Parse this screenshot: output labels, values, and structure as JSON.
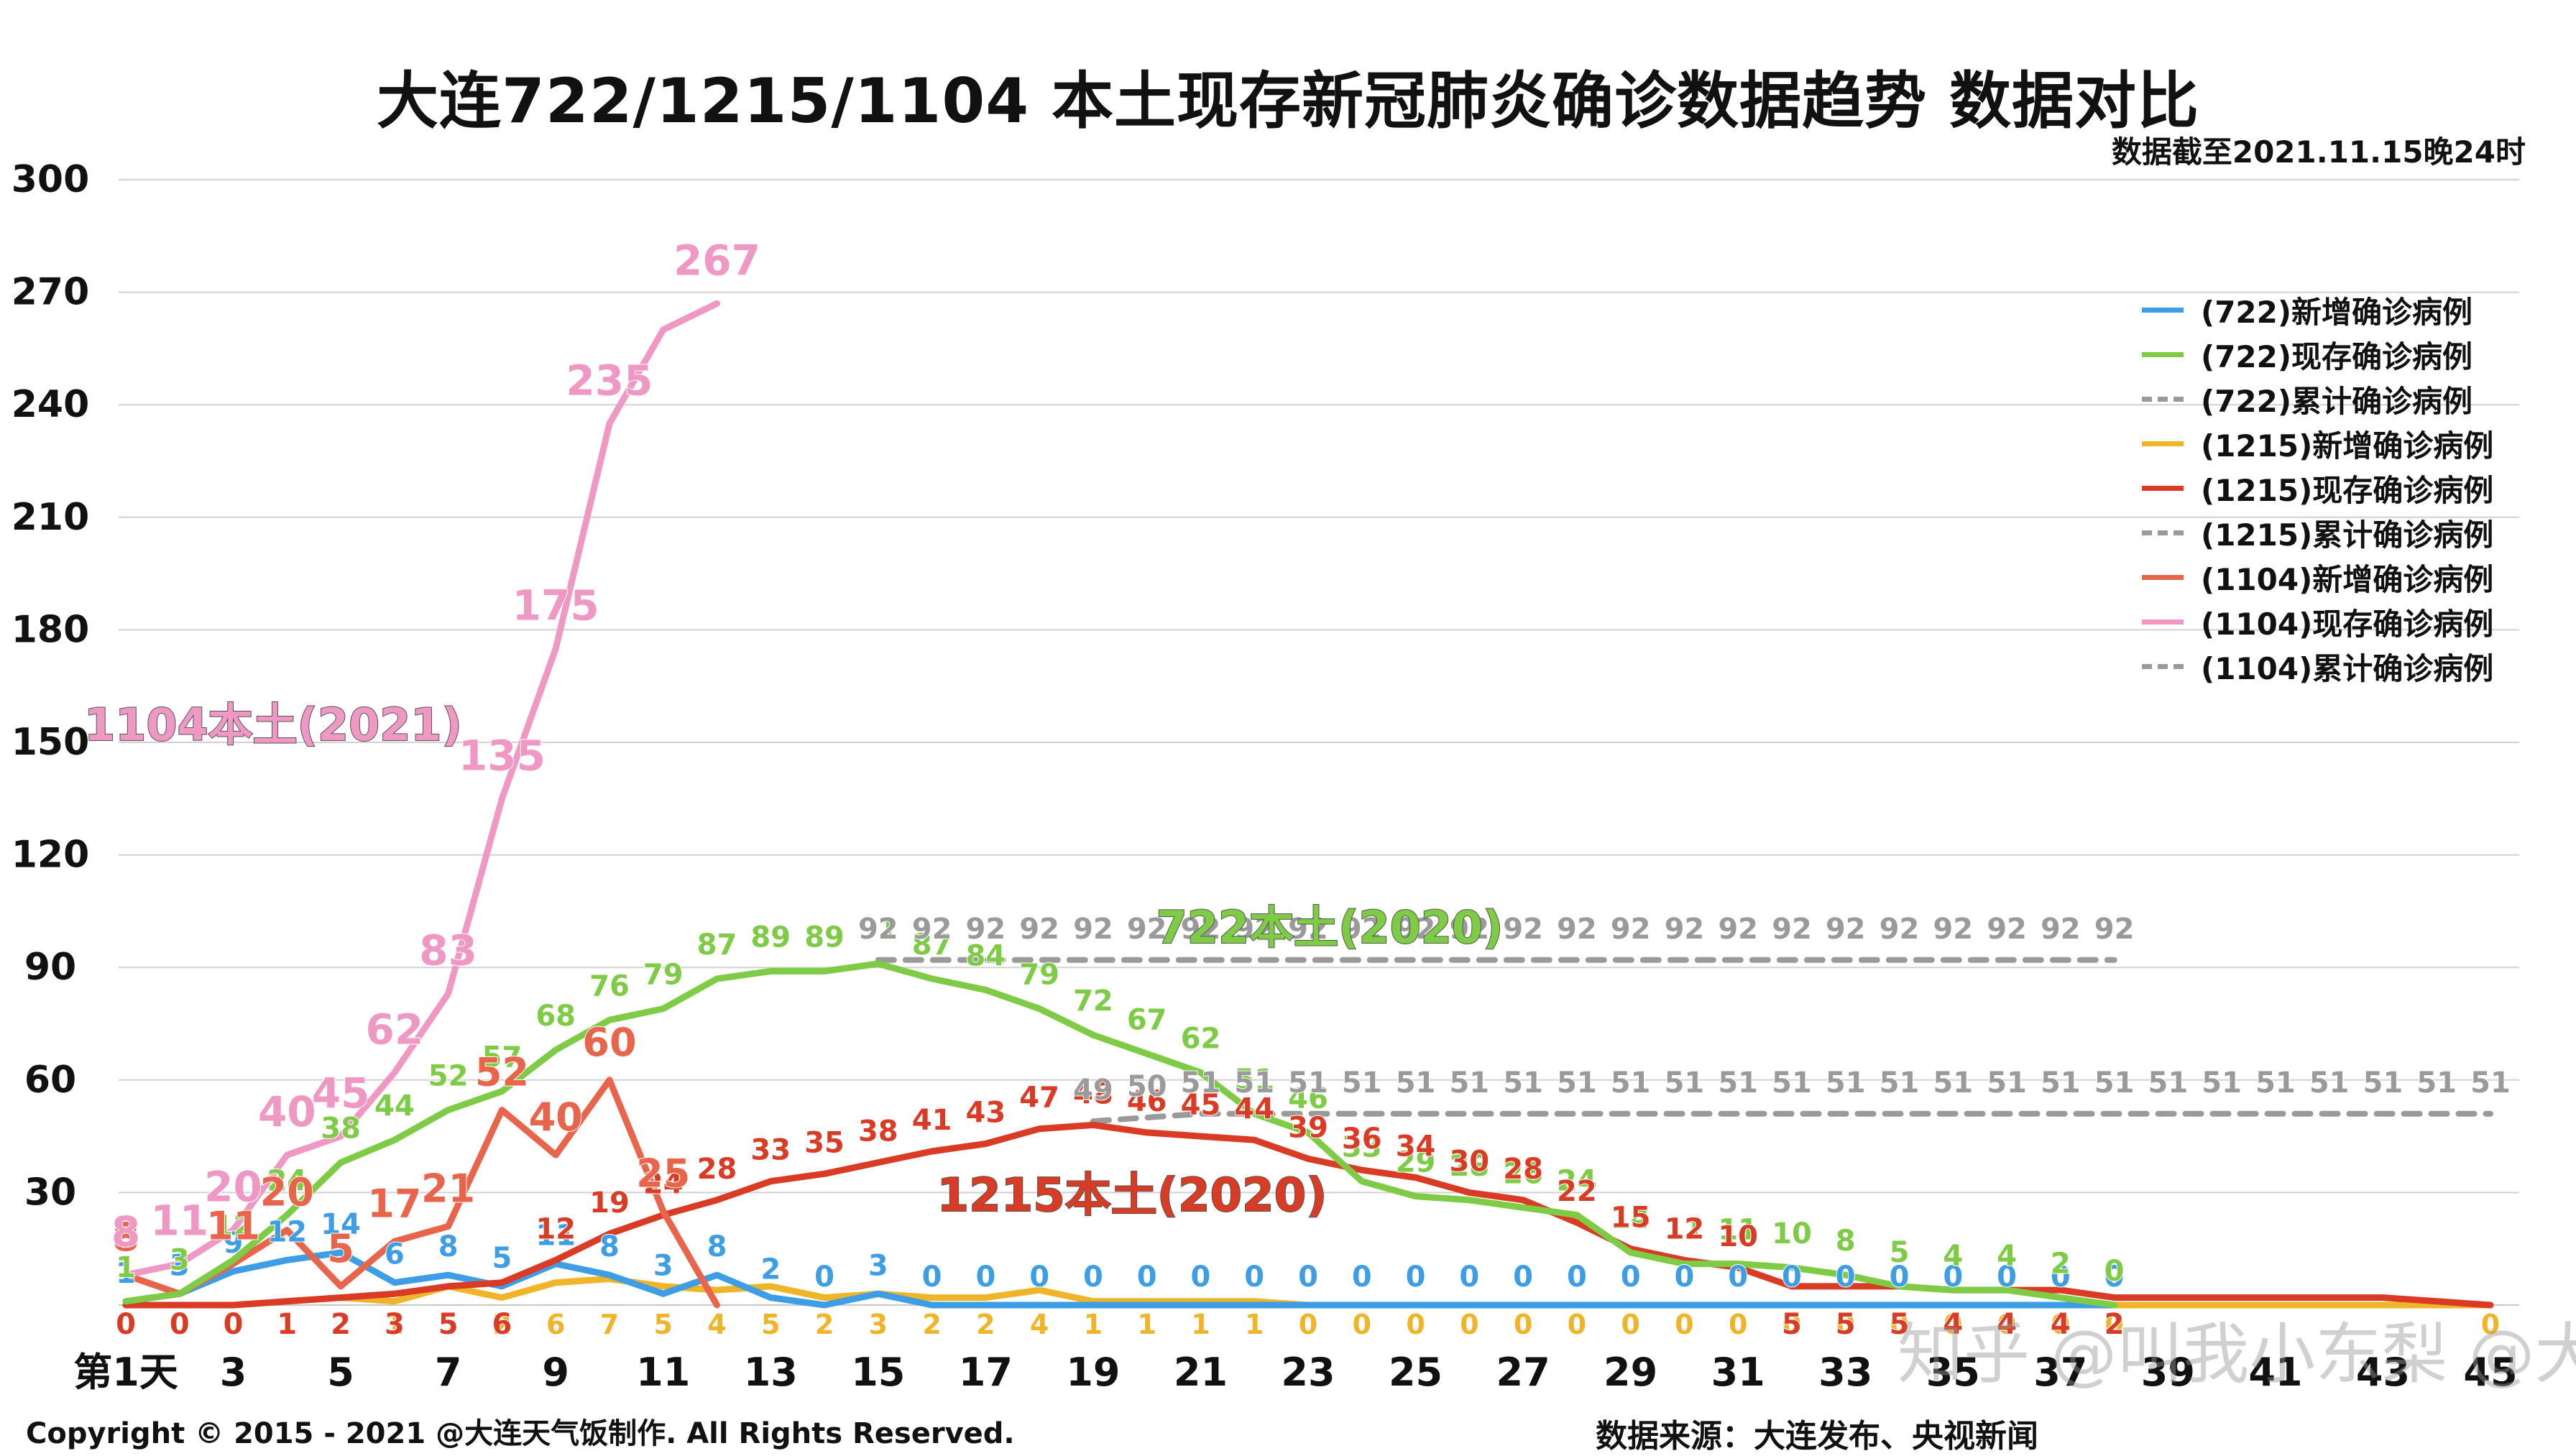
{
  "title": "大连722/1215/1104 本土现存新冠肺炎确诊数据趋势 数据对比",
  "data_cutoff": "数据截至2021.11.15晚24时",
  "copyright": "Copyright © 2015 - 2021 @大连天气饭制作. All Rights Reserved.",
  "source": "数据来源：大连发布、央视新闻",
  "watermark": "知乎 @叫我小东梨  @大连天气饭",
  "annotations": {
    "a1104": "1104本土(2021)",
    "a722": "722本土(2020)",
    "a1215": "1215本土(2020)"
  },
  "colors": {
    "c722_new": "#3d9ee6",
    "c722_current": "#7ecb45",
    "c1215_new": "#f0b429",
    "c1215_current": "#d93b24",
    "c1104_new": "#e8644a",
    "c1104_current": "#ef98c4",
    "cumulative": "#9a9a9a"
  },
  "chart_data": {
    "type": "line",
    "x_label_first": "第1天",
    "x_ticks": [
      "第1天",
      "3",
      "5",
      "7",
      "9",
      "11",
      "13",
      "15",
      "17",
      "19",
      "21",
      "23",
      "25",
      "27",
      "29",
      "31",
      "33",
      "35",
      "37",
      "39",
      "41",
      "43",
      "45"
    ],
    "x_range": [
      1,
      45
    ],
    "y_ticks": [
      "300",
      "270",
      "240",
      "210",
      "180",
      "150",
      "120",
      "90",
      "60",
      "30"
    ],
    "ylim": [
      0,
      300
    ],
    "grid": true,
    "legend_position": "right",
    "series": [
      {
        "name": "(722)新增确诊病例",
        "key": "c722_new",
        "style": "solid",
        "x": [
          1,
          2,
          3,
          4,
          5,
          6,
          7,
          8,
          9,
          10,
          11,
          12,
          13,
          14,
          15,
          16,
          17,
          18,
          19,
          20,
          21,
          22,
          23,
          24,
          25,
          26,
          27,
          28,
          29,
          30,
          31,
          32,
          33,
          34,
          35,
          36,
          37,
          38
        ],
        "values": [
          1,
          3,
          9,
          12,
          14,
          6,
          8,
          5,
          11,
          8,
          3,
          8,
          2,
          0,
          3,
          0,
          0,
          0,
          0,
          0,
          0,
          0,
          0,
          0,
          0,
          0,
          0,
          0,
          0,
          0,
          0,
          0,
          0,
          0,
          0,
          0,
          0,
          0
        ],
        "labels": [
          true,
          true,
          true,
          true,
          true,
          true,
          true,
          true,
          true,
          true,
          true,
          true,
          true,
          true,
          true,
          true,
          true,
          true,
          true,
          true,
          true,
          true,
          true,
          true,
          true,
          true,
          true,
          true,
          true,
          true,
          true,
          true,
          true,
          true,
          true,
          true,
          true,
          true
        ]
      },
      {
        "name": "(722)现存确诊病例",
        "key": "c722_current",
        "style": "solid",
        "x": [
          1,
          2,
          3,
          4,
          5,
          6,
          7,
          8,
          9,
          10,
          11,
          12,
          13,
          14,
          15,
          16,
          17,
          18,
          19,
          20,
          21,
          22,
          23,
          24,
          25,
          26,
          27,
          28,
          29,
          30,
          31,
          32,
          33,
          34,
          35,
          36,
          37,
          38
        ],
        "values": [
          1,
          3,
          12,
          24,
          38,
          44,
          52,
          57,
          68,
          76,
          79,
          87,
          89,
          89,
          91,
          87,
          84,
          79,
          72,
          67,
          62,
          51,
          46,
          33,
          29,
          28,
          26,
          24,
          14,
          11,
          11,
          10,
          8,
          5,
          4,
          4,
          2,
          0
        ],
        "labels": [
          true,
          true,
          true,
          true,
          true,
          true,
          true,
          true,
          true,
          true,
          true,
          true,
          true,
          true,
          true,
          true,
          true,
          true,
          true,
          true,
          true,
          true,
          true,
          true,
          true,
          true,
          true,
          true,
          true,
          true,
          true,
          true,
          true,
          true,
          true,
          true,
          true,
          true
        ]
      },
      {
        "name": "(722)累计确诊病例",
        "key": "cumulative",
        "style": "dashed",
        "x": [
          15,
          16,
          17,
          18,
          19,
          20,
          21,
          22,
          23,
          24,
          25,
          26,
          27,
          28,
          29,
          30,
          31,
          32,
          33,
          34,
          35,
          36,
          37,
          38
        ],
        "values": [
          92,
          92,
          92,
          92,
          92,
          92,
          92,
          92,
          92,
          92,
          92,
          92,
          92,
          92,
          92,
          92,
          92,
          92,
          92,
          92,
          92,
          92,
          92,
          92
        ],
        "labels": [
          true,
          true,
          true,
          true,
          true,
          true,
          true,
          true,
          true,
          true,
          true,
          true,
          true,
          true,
          true,
          true,
          true,
          true,
          true,
          true,
          true,
          true,
          true,
          true
        ]
      },
      {
        "name": "(1215)新增确诊病例",
        "key": "c1215_new",
        "style": "solid",
        "x": [
          1,
          2,
          3,
          4,
          5,
          6,
          7,
          8,
          9,
          10,
          11,
          12,
          13,
          14,
          15,
          16,
          17,
          18,
          19,
          20,
          21,
          22,
          23,
          24,
          25,
          26,
          27,
          28,
          29,
          30,
          31,
          32,
          33,
          34,
          35,
          36,
          37,
          38,
          39,
          40,
          41,
          42,
          43,
          44,
          45
        ],
        "values": [
          0,
          0,
          0,
          1,
          2,
          1,
          5,
          2,
          6,
          7,
          5,
          4,
          5,
          2,
          3,
          2,
          2,
          4,
          1,
          1,
          1,
          1,
          0,
          0,
          0,
          0,
          0,
          0,
          0,
          0,
          0,
          0,
          0,
          0,
          0,
          0,
          0,
          0,
          0,
          0,
          0,
          0,
          0,
          0,
          0
        ],
        "labels": [
          true,
          true,
          true,
          true,
          true,
          true,
          true,
          true,
          true,
          true,
          true,
          true,
          true,
          true,
          true,
          true,
          true,
          true,
          true,
          true,
          true,
          true,
          true,
          true,
          true,
          true,
          true,
          true,
          true,
          true,
          true,
          true,
          true,
          true,
          true,
          true,
          true,
          true,
          false,
          false,
          false,
          false,
          false,
          false,
          true
        ]
      },
      {
        "name": "(1215)现存确诊病例",
        "key": "c1215_current",
        "style": "solid",
        "x": [
          1,
          2,
          3,
          4,
          5,
          6,
          7,
          8,
          9,
          10,
          11,
          12,
          13,
          14,
          15,
          16,
          17,
          18,
          19,
          20,
          21,
          22,
          23,
          24,
          25,
          26,
          27,
          28,
          29,
          30,
          31,
          32,
          33,
          34,
          35,
          36,
          37,
          38,
          39,
          40,
          41,
          42,
          43,
          44,
          45
        ],
        "values": [
          0,
          0,
          0,
          1,
          2,
          3,
          5,
          6,
          12,
          19,
          24,
          28,
          33,
          35,
          38,
          41,
          43,
          47,
          48,
          46,
          45,
          44,
          39,
          36,
          34,
          30,
          28,
          22,
          15,
          12,
          10,
          5,
          5,
          5,
          4,
          4,
          4,
          2,
          2,
          2,
          2,
          2,
          2,
          1,
          0
        ],
        "labels": [
          true,
          true,
          true,
          true,
          true,
          true,
          true,
          true,
          true,
          true,
          true,
          true,
          true,
          true,
          true,
          true,
          true,
          true,
          true,
          true,
          true,
          true,
          true,
          true,
          true,
          true,
          true,
          true,
          true,
          true,
          true,
          true,
          true,
          true,
          true,
          true,
          true,
          true,
          false,
          false,
          false,
          false,
          false,
          false,
          false
        ]
      },
      {
        "name": "(1215)累计确诊病例",
        "key": "cumulative",
        "style": "dashed",
        "x": [
          19,
          20,
          21,
          22,
          23,
          24,
          25,
          26,
          27,
          28,
          29,
          30,
          31,
          32,
          33,
          34,
          35,
          36,
          37,
          38,
          39,
          40,
          41,
          42,
          43,
          44,
          45
        ],
        "values": [
          49,
          50,
          51,
          51,
          51,
          51,
          51,
          51,
          51,
          51,
          51,
          51,
          51,
          51,
          51,
          51,
          51,
          51,
          51,
          51,
          51,
          51,
          51,
          51,
          51,
          51,
          51
        ],
        "labels": [
          true,
          true,
          true,
          true,
          true,
          true,
          true,
          true,
          true,
          true,
          true,
          true,
          true,
          true,
          true,
          true,
          true,
          true,
          true,
          true,
          true,
          true,
          true,
          true,
          true,
          true,
          true
        ]
      },
      {
        "name": "(1104)新增确诊病例",
        "key": "c1104_new",
        "style": "solid",
        "x": [
          1,
          2,
          3,
          4,
          5,
          6,
          7,
          8,
          9,
          10,
          11,
          12
        ],
        "values": [
          8,
          3,
          11,
          20,
          5,
          17,
          21,
          52,
          40,
          60,
          25,
          0
        ],
        "labels": [
          true,
          false,
          true,
          true,
          true,
          true,
          true,
          true,
          true,
          true,
          true,
          false
        ]
      },
      {
        "name": "(1104)现存确诊病例",
        "key": "c1104_current",
        "style": "solid",
        "x": [
          1,
          2,
          3,
          4,
          5,
          6,
          7,
          8,
          9,
          10,
          11,
          12
        ],
        "values": [
          8,
          11,
          20,
          40,
          45,
          62,
          83,
          135,
          175,
          235,
          260,
          267
        ],
        "labels": [
          true,
          true,
          true,
          true,
          true,
          true,
          true,
          true,
          true,
          true,
          false,
          true
        ]
      },
      {
        "name": "(1104)累计确诊病例",
        "key": "cumulative",
        "style": "dashed",
        "x": [],
        "values": [],
        "labels": []
      }
    ]
  }
}
